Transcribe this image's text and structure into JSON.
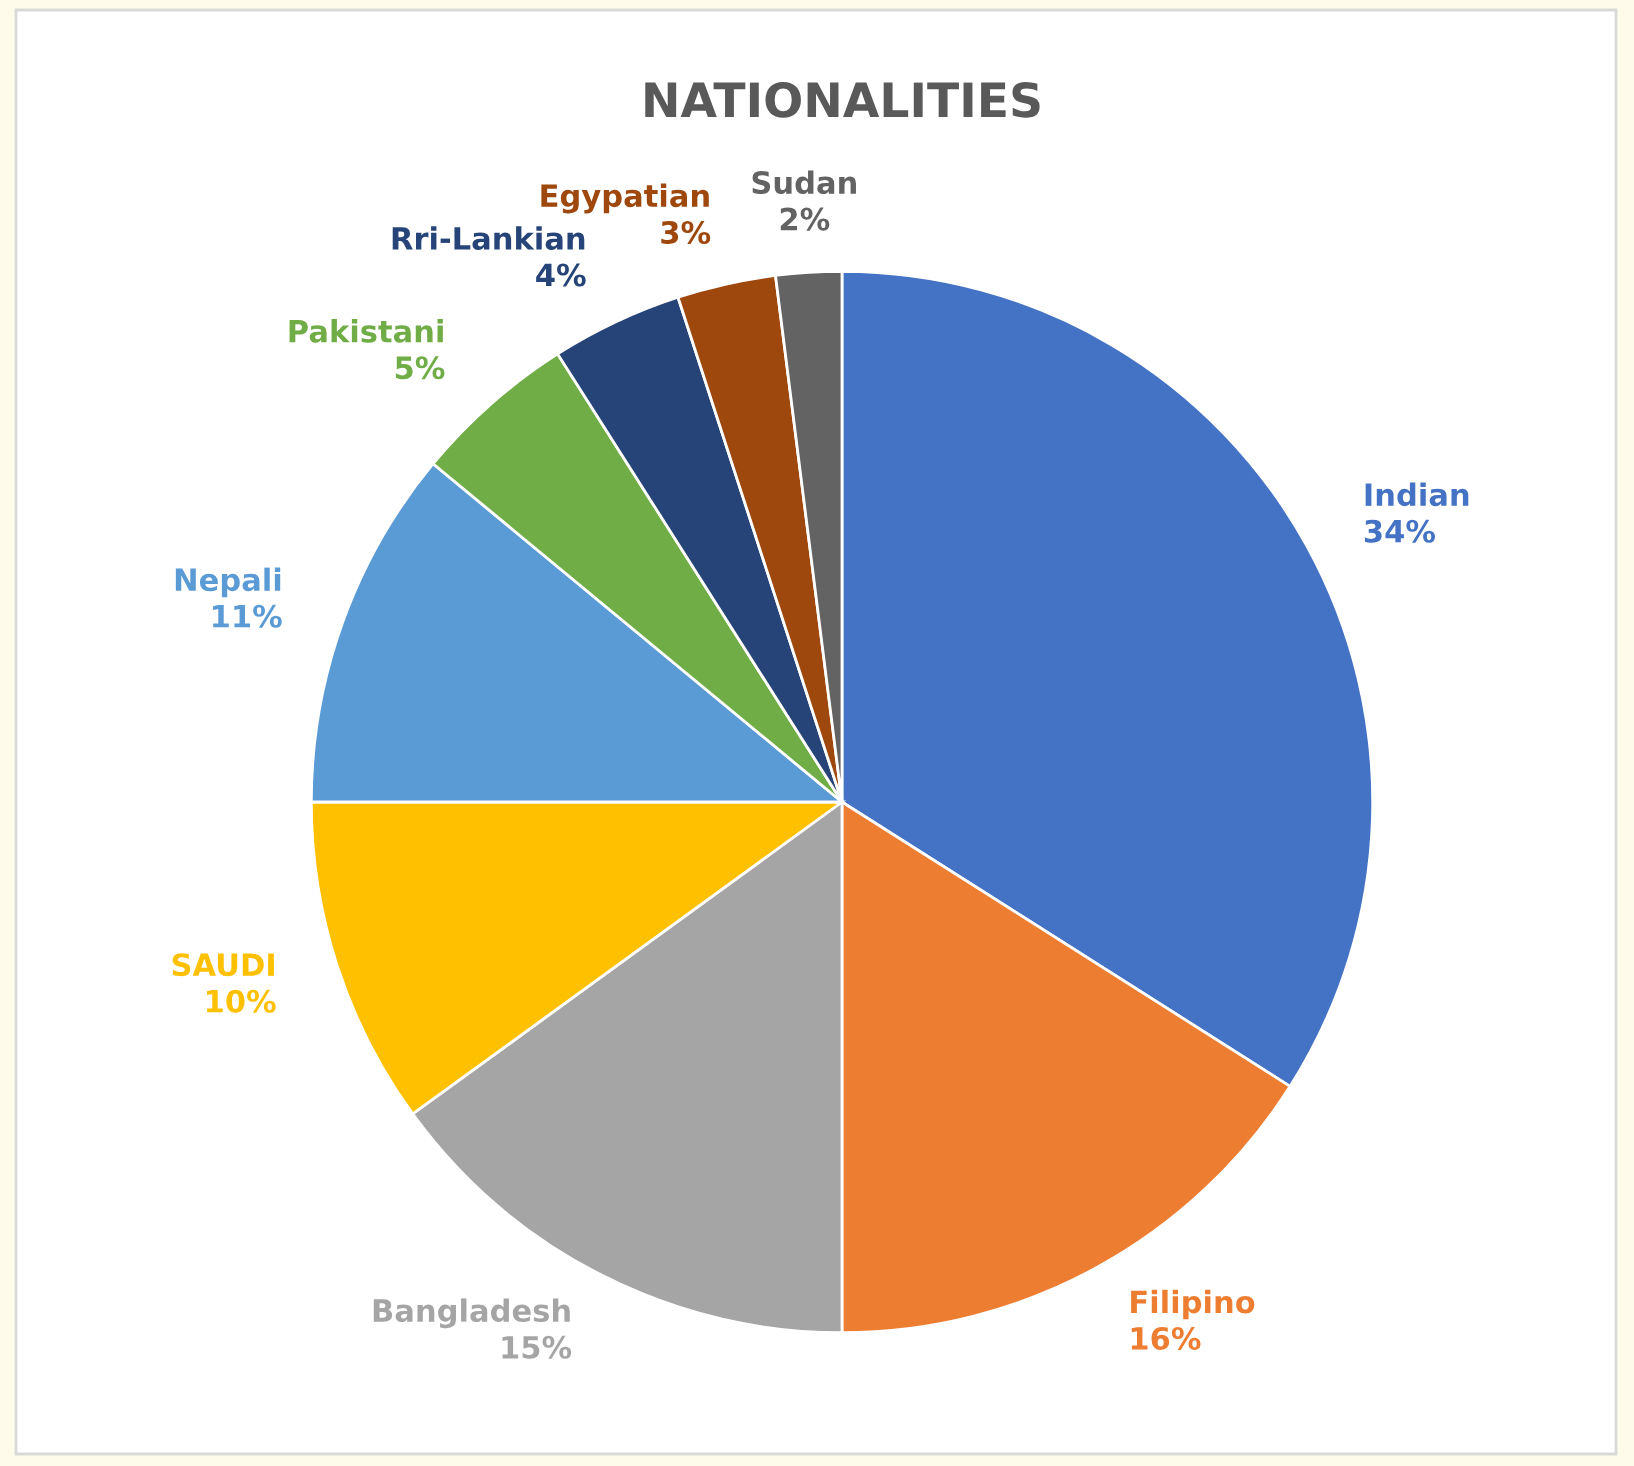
{
  "chart_data": {
    "type": "pie",
    "title": "NATIONALITIES",
    "categories": [
      "Indian",
      "Filipino",
      "Bangladesh",
      "SAUDI",
      "Nepali",
      "Pakistani",
      "Rri-Lankian",
      "Egypatian",
      "Sudan"
    ],
    "values": [
      34,
      16,
      15,
      10,
      11,
      5,
      4,
      3,
      2
    ],
    "value_labels": [
      "34%",
      "16%",
      "15%",
      "10%",
      "11%",
      "5%",
      "4%",
      "3%",
      "2%"
    ],
    "colors": [
      "#4472c4",
      "#ed7d31",
      "#a5a5a5",
      "#ffc000",
      "#5b9bd5",
      "#70ad47",
      "#264478",
      "#9e480e",
      "#636363"
    ],
    "legend": false
  }
}
